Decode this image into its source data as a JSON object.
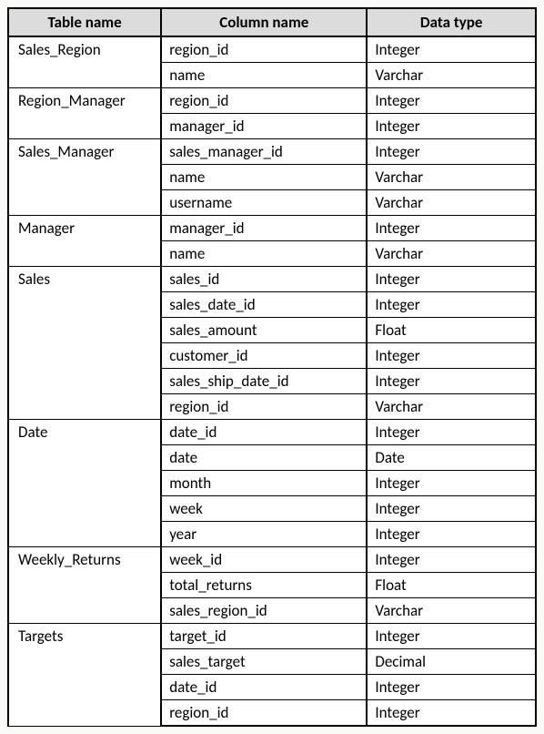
{
  "schema_table": {
    "type": "table",
    "headers": {
      "table_name": "Table name",
      "column_name": "Column name",
      "data_type": "Data type"
    },
    "colors": {
      "header_bg": "#dcdcdc",
      "border": "#000000",
      "bg": "#ffffff",
      "page_bg": "#f9f9f7"
    },
    "column_widths_pct": [
      29,
      39,
      32
    ],
    "fontsize": 17,
    "tables": [
      {
        "name": "Sales_Region",
        "columns": [
          {
            "name": "region_id",
            "type": "Integer"
          },
          {
            "name": "name",
            "type": "Varchar"
          }
        ]
      },
      {
        "name": "Region_Manager",
        "columns": [
          {
            "name": "region_id",
            "type": "Integer"
          },
          {
            "name": "manager_id",
            "type": "Integer"
          }
        ]
      },
      {
        "name": "Sales_Manager",
        "columns": [
          {
            "name": "sales_manager_id",
            "type": "Integer"
          },
          {
            "name": "name",
            "type": "Varchar"
          },
          {
            "name": "username",
            "type": "Varchar"
          }
        ]
      },
      {
        "name": "Manager",
        "columns": [
          {
            "name": "manager_id",
            "type": "Integer"
          },
          {
            "name": "name",
            "type": "Varchar"
          }
        ]
      },
      {
        "name": "Sales",
        "columns": [
          {
            "name": "sales_id",
            "type": "Integer"
          },
          {
            "name": "sales_date_id",
            "type": "Integer"
          },
          {
            "name": "sales_amount",
            "type": "Float"
          },
          {
            "name": "customer_id",
            "type": "Integer"
          },
          {
            "name": "sales_ship_date_id",
            "type": "Integer"
          },
          {
            "name": "region_id",
            "type": "Varchar"
          }
        ]
      },
      {
        "name": "Date",
        "columns": [
          {
            "name": "date_id",
            "type": "Integer"
          },
          {
            "name": "date",
            "type": "Date"
          },
          {
            "name": "month",
            "type": "Integer"
          },
          {
            "name": "week",
            "type": "Integer"
          },
          {
            "name": "year",
            "type": "Integer"
          }
        ]
      },
      {
        "name": "Weekly_Returns",
        "columns": [
          {
            "name": "week_id",
            "type": "Integer"
          },
          {
            "name": "total_returns",
            "type": "Float"
          },
          {
            "name": "sales_region_id",
            "type": "Varchar"
          }
        ]
      },
      {
        "name": "Targets",
        "columns": [
          {
            "name": "target_id",
            "type": "Integer"
          },
          {
            "name": "sales_target",
            "type": "Decimal"
          },
          {
            "name": "date_id",
            "type": "Integer"
          },
          {
            "name": "region_id",
            "type": "Integer"
          }
        ]
      }
    ]
  }
}
